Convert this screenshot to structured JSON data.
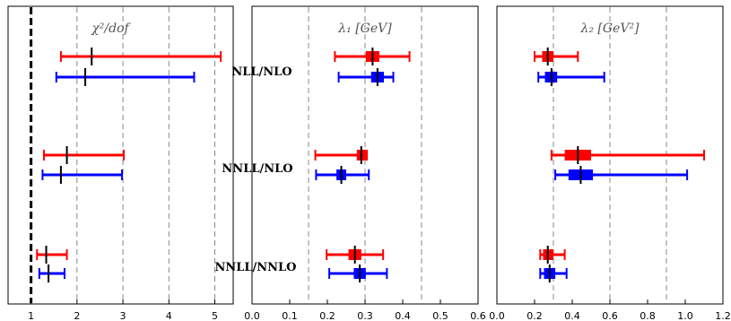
{
  "row_labels": [
    "NLL/NLO",
    "NNLL/NLO",
    "NNLL/NNLO"
  ],
  "chart_data": [
    {
      "type": "errorbar",
      "title": "χ²/dof",
      "xlim": [
        0.5,
        5.4
      ],
      "xticks": [
        1,
        2,
        3,
        4,
        5
      ],
      "tick_labels": [
        "1",
        "2",
        "3",
        "4",
        "5"
      ],
      "grid_x": [
        2,
        3,
        4,
        5
      ],
      "reference_line": 1,
      "marker": "tick",
      "series": [
        {
          "row": "NLL/NLO",
          "color": "#ff0000",
          "center": 2.32,
          "low": 1.65,
          "high": 5.13
        },
        {
          "row": "NLL/NLO",
          "color": "#0000ff",
          "center": 2.18,
          "low": 1.55,
          "high": 4.55
        },
        {
          "row": "NNLL/NLO",
          "color": "#ff0000",
          "center": 1.78,
          "low": 1.28,
          "high": 3.02
        },
        {
          "row": "NNLL/NLO",
          "color": "#0000ff",
          "center": 1.65,
          "low": 1.25,
          "high": 2.98
        },
        {
          "row": "NNLL/NNLO",
          "color": "#ff0000",
          "center": 1.33,
          "low": 1.13,
          "high": 1.78
        },
        {
          "row": "NNLL/NNLO",
          "color": "#0000ff",
          "center": 1.38,
          "low": 1.18,
          "high": 1.73
        }
      ]
    },
    {
      "type": "errorbar",
      "title": "λ₁ [GeV]",
      "xlim": [
        0.0,
        0.6
      ],
      "xticks": [
        0.0,
        0.1,
        0.2,
        0.3,
        0.4,
        0.5,
        0.6
      ],
      "tick_labels": [
        "0.0",
        "0.1",
        "0.2",
        "0.3",
        "0.4",
        "0.5",
        "0.6"
      ],
      "grid_x": [
        0.15,
        0.3,
        0.45
      ],
      "marker": "box",
      "series": [
        {
          "row": "NLL/NLO",
          "color": "#ff0000",
          "center": 0.32,
          "box_low": 0.302,
          "box_high": 0.338,
          "low": 0.22,
          "high": 0.418
        },
        {
          "row": "NLL/NLO",
          "color": "#0000ff",
          "center": 0.333,
          "box_low": 0.316,
          "box_high": 0.35,
          "low": 0.23,
          "high": 0.375
        },
        {
          "row": "NNLL/NLO",
          "color": "#ff0000",
          "center": 0.29,
          "box_low": 0.278,
          "box_high": 0.303,
          "low": 0.168,
          "high": 0.305
        },
        {
          "row": "NNLL/NLO",
          "color": "#0000ff",
          "center": 0.237,
          "box_low": 0.224,
          "box_high": 0.25,
          "low": 0.17,
          "high": 0.31
        },
        {
          "row": "NNLL/NNLO",
          "color": "#ff0000",
          "center": 0.273,
          "box_low": 0.256,
          "box_high": 0.29,
          "low": 0.198,
          "high": 0.348
        },
        {
          "row": "NNLL/NNLO",
          "color": "#0000ff",
          "center": 0.286,
          "box_low": 0.27,
          "box_high": 0.302,
          "low": 0.205,
          "high": 0.358
        }
      ]
    },
    {
      "type": "errorbar",
      "title": "λ₂ [GeV²]",
      "xlim": [
        0.0,
        1.2
      ],
      "xticks": [
        0.0,
        0.2,
        0.4,
        0.6,
        0.8,
        1.0,
        1.2
      ],
      "tick_labels": [
        "0.0",
        "0.2",
        "0.4",
        "0.6",
        "0.8",
        "1.0",
        "1.2"
      ],
      "grid_x": [
        0.3,
        0.6,
        0.9
      ],
      "marker": "box",
      "series": [
        {
          "row": "NLL/NLO",
          "color": "#ff0000",
          "center": 0.27,
          "box_low": 0.24,
          "box_high": 0.3,
          "low": 0.2,
          "high": 0.43
        },
        {
          "row": "NLL/NLO",
          "color": "#0000ff",
          "center": 0.29,
          "box_low": 0.255,
          "box_high": 0.32,
          "low": 0.22,
          "high": 0.57
        },
        {
          "row": "NNLL/NLO",
          "color": "#ff0000",
          "center": 0.43,
          "box_low": 0.36,
          "box_high": 0.5,
          "low": 0.29,
          "high": 1.1
        },
        {
          "row": "NNLL/NLO",
          "color": "#0000ff",
          "center": 0.445,
          "box_low": 0.38,
          "box_high": 0.51,
          "low": 0.31,
          "high": 1.01
        },
        {
          "row": "NNLL/NNLO",
          "color": "#ff0000",
          "center": 0.27,
          "box_low": 0.245,
          "box_high": 0.3,
          "low": 0.23,
          "high": 0.36
        },
        {
          "row": "NNLL/NNLO",
          "color": "#0000ff",
          "center": 0.28,
          "box_low": 0.25,
          "box_high": 0.31,
          "low": 0.23,
          "high": 0.37
        }
      ]
    }
  ]
}
